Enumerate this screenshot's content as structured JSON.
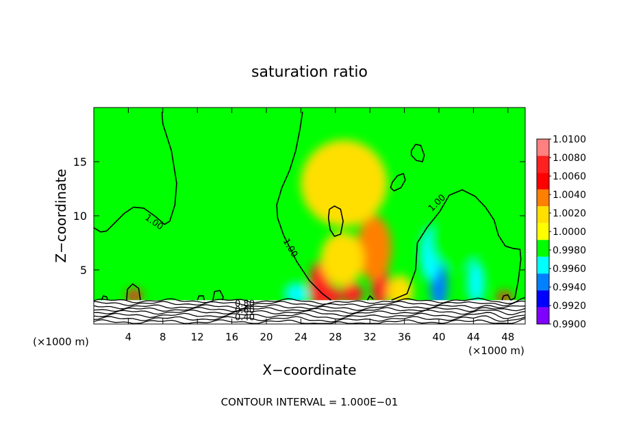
{
  "chart_data": {
    "type": "heatmap",
    "title": "saturation ratio",
    "xlabel": "X−coordinate",
    "ylabel": "Z−coordinate",
    "x_unit_left": "(×1000 m)",
    "x_unit_right": "(×1000 m)",
    "xlim": [
      0,
      50
    ],
    "ylim": [
      0,
      20
    ],
    "x_ticks": [
      "4",
      "8",
      "12",
      "16",
      "20",
      "24",
      "28",
      "32",
      "36",
      "40",
      "44",
      "48"
    ],
    "y_ticks": [
      "5",
      "10",
      "15"
    ],
    "footer": "CONTOUR INTERVAL = 1.000E−01",
    "colorbar": {
      "labels": [
        "1.0100",
        "1.0080",
        "1.0060",
        "1.0040",
        "1.0020",
        "1.0000",
        "0.9980",
        "0.9960",
        "0.9940",
        "0.9920",
        "0.9900"
      ],
      "colors": [
        "#ff8080",
        "#ff2020",
        "#ff0000",
        "#ff8000",
        "#ffdf00",
        "#ffff00",
        "#00ff00",
        "#00ffff",
        "#0080ff",
        "#0000ff",
        "#8000ff"
      ],
      "range": [
        0.99,
        1.01
      ]
    },
    "background_color": "#00ff00",
    "contour_labels": [
      {
        "text": "1.00",
        "x": 6.8,
        "z": 9.2
      },
      {
        "text": "1.00",
        "x": 22.5,
        "z": 6.9
      },
      {
        "text": "1.00",
        "x": 40.0,
        "z": 11.0
      },
      {
        "text": "0.80",
        "x": 17.5,
        "z": 1.6
      },
      {
        "text": "0.60",
        "x": 17.5,
        "z": 1.0
      },
      {
        "text": "0.40",
        "x": 17.5,
        "z": 0.35
      }
    ],
    "contours_1_00": [
      [
        [
          0.0,
          8.9
        ],
        [
          0.8,
          8.5
        ],
        [
          1.5,
          8.6
        ],
        [
          2.5,
          9.4
        ],
        [
          3.5,
          10.2
        ],
        [
          4.6,
          10.8
        ],
        [
          5.8,
          10.7
        ],
        [
          7.2,
          9.9
        ],
        [
          8.2,
          9.2
        ],
        [
          8.8,
          9.5
        ],
        [
          9.4,
          11.0
        ],
        [
          9.6,
          13.0
        ],
        [
          9.0,
          16.0
        ],
        [
          8.0,
          18.5
        ],
        [
          7.9,
          19.6
        ]
      ],
      [
        [
          24.2,
          19.6
        ],
        [
          23.9,
          18.0
        ],
        [
          23.4,
          16.0
        ],
        [
          22.7,
          14.2
        ],
        [
          21.8,
          12.6
        ],
        [
          21.2,
          11.0
        ],
        [
          21.3,
          9.8
        ],
        [
          22.0,
          8.2
        ],
        [
          23.5,
          5.8
        ],
        [
          25.0,
          4.0
        ],
        [
          26.5,
          2.8
        ],
        [
          27.5,
          2.2
        ]
      ],
      [
        [
          34.5,
          2.2
        ],
        [
          36.3,
          2.8
        ],
        [
          37.3,
          5.0
        ],
        [
          37.5,
          7.5
        ],
        [
          38.6,
          8.9
        ],
        [
          40.1,
          10.4
        ],
        [
          41.2,
          11.9
        ],
        [
          42.7,
          12.4
        ],
        [
          44.2,
          11.8
        ],
        [
          45.4,
          10.8
        ],
        [
          46.4,
          9.6
        ],
        [
          46.9,
          8.2
        ],
        [
          47.7,
          7.2
        ],
        [
          48.5,
          7.0
        ],
        [
          49.4,
          6.9
        ],
        [
          49.5,
          6.0
        ],
        [
          49.2,
          4.0
        ],
        [
          48.8,
          2.4
        ],
        [
          48.3,
          2.2
        ]
      ],
      [
        [
          36.8,
          16.0
        ],
        [
          37.3,
          16.6
        ],
        [
          37.9,
          16.5
        ],
        [
          38.3,
          15.6
        ],
        [
          38.1,
          15.0
        ],
        [
          37.4,
          15.1
        ],
        [
          36.8,
          15.6
        ],
        [
          36.8,
          16.0
        ]
      ],
      [
        [
          34.6,
          13.1
        ],
        [
          35.2,
          13.7
        ],
        [
          35.9,
          13.9
        ],
        [
          36.1,
          13.3
        ],
        [
          35.6,
          12.6
        ],
        [
          34.8,
          12.3
        ],
        [
          34.4,
          12.6
        ],
        [
          34.6,
          13.1
        ]
      ],
      [
        [
          27.3,
          10.6
        ],
        [
          27.9,
          10.9
        ],
        [
          28.6,
          10.6
        ],
        [
          28.9,
          9.5
        ],
        [
          28.6,
          8.3
        ],
        [
          27.9,
          8.1
        ],
        [
          27.4,
          8.7
        ],
        [
          27.2,
          9.8
        ],
        [
          27.3,
          10.6
        ]
      ],
      [
        [
          3.8,
          2.2
        ],
        [
          3.9,
          3.2
        ],
        [
          4.5,
          3.7
        ],
        [
          5.2,
          3.3
        ],
        [
          5.4,
          2.2
        ]
      ],
      [
        [
          13.8,
          2.2
        ],
        [
          14.0,
          3.0
        ],
        [
          14.6,
          3.1
        ],
        [
          15.0,
          2.5
        ],
        [
          14.9,
          2.2
        ]
      ],
      [
        [
          12.0,
          2.2
        ],
        [
          12.2,
          2.6
        ],
        [
          12.7,
          2.6
        ],
        [
          12.8,
          2.2
        ]
      ],
      [
        [
          0.9,
          2.2
        ],
        [
          1.1,
          2.6
        ],
        [
          1.5,
          2.5
        ],
        [
          1.6,
          2.2
        ]
      ],
      [
        [
          31.7,
          2.2
        ],
        [
          32.0,
          2.6
        ],
        [
          32.4,
          2.3
        ]
      ],
      [
        [
          47.3,
          2.2
        ],
        [
          47.5,
          2.6
        ],
        [
          48.0,
          2.7
        ],
        [
          48.3,
          2.2
        ]
      ]
    ],
    "blobs": [
      {
        "x": 26.2,
        "z": 3.6,
        "rx": 1.2,
        "rz": 2.2,
        "value": 1.0085
      },
      {
        "x": 27.4,
        "z": 2.6,
        "rx": 1.4,
        "rz": 0.9,
        "value": 1.0075
      },
      {
        "x": 30.0,
        "z": 2.8,
        "rx": 1.2,
        "rz": 1.0,
        "value": 1.0085
      },
      {
        "x": 33.2,
        "z": 3.8,
        "rx": 1.0,
        "rz": 2.3,
        "value": 1.0085
      },
      {
        "x": 32.5,
        "z": 7.0,
        "rx": 2.0,
        "rz": 3.0,
        "value": 1.0035
      },
      {
        "x": 28.8,
        "z": 6.0,
        "rx": 2.5,
        "rz": 2.5,
        "value": 1.0028
      },
      {
        "x": 35.5,
        "z": 3.0,
        "rx": 1.5,
        "rz": 1.5,
        "value": 1.0025
      },
      {
        "x": 4.7,
        "z": 2.6,
        "rx": 0.9,
        "rz": 0.6,
        "value": 1.008
      },
      {
        "x": 47.6,
        "z": 2.5,
        "rx": 0.9,
        "rz": 0.5,
        "value": 1.0075
      },
      {
        "x": 40.0,
        "z": 3.6,
        "rx": 1.0,
        "rz": 2.2,
        "value": 0.9935
      },
      {
        "x": 39.0,
        "z": 6.5,
        "rx": 1.2,
        "rz": 2.5,
        "value": 0.9968
      },
      {
        "x": 44.3,
        "z": 3.8,
        "rx": 1.0,
        "rz": 2.0,
        "value": 0.9962
      },
      {
        "x": 23.5,
        "z": 2.8,
        "rx": 1.4,
        "rz": 1.0,
        "value": 0.9955
      },
      {
        "x": 15.0,
        "z": 12.0,
        "rx": 3.5,
        "rz": 3.0,
        "value": 0.9985
      },
      {
        "x": 42.0,
        "z": 8.0,
        "rx": 3.0,
        "rz": 3.0,
        "value": 0.9982
      },
      {
        "x": 29.0,
        "z": 13.0,
        "rx": 5.0,
        "rz": 4.0,
        "value": 1.0015
      }
    ]
  }
}
